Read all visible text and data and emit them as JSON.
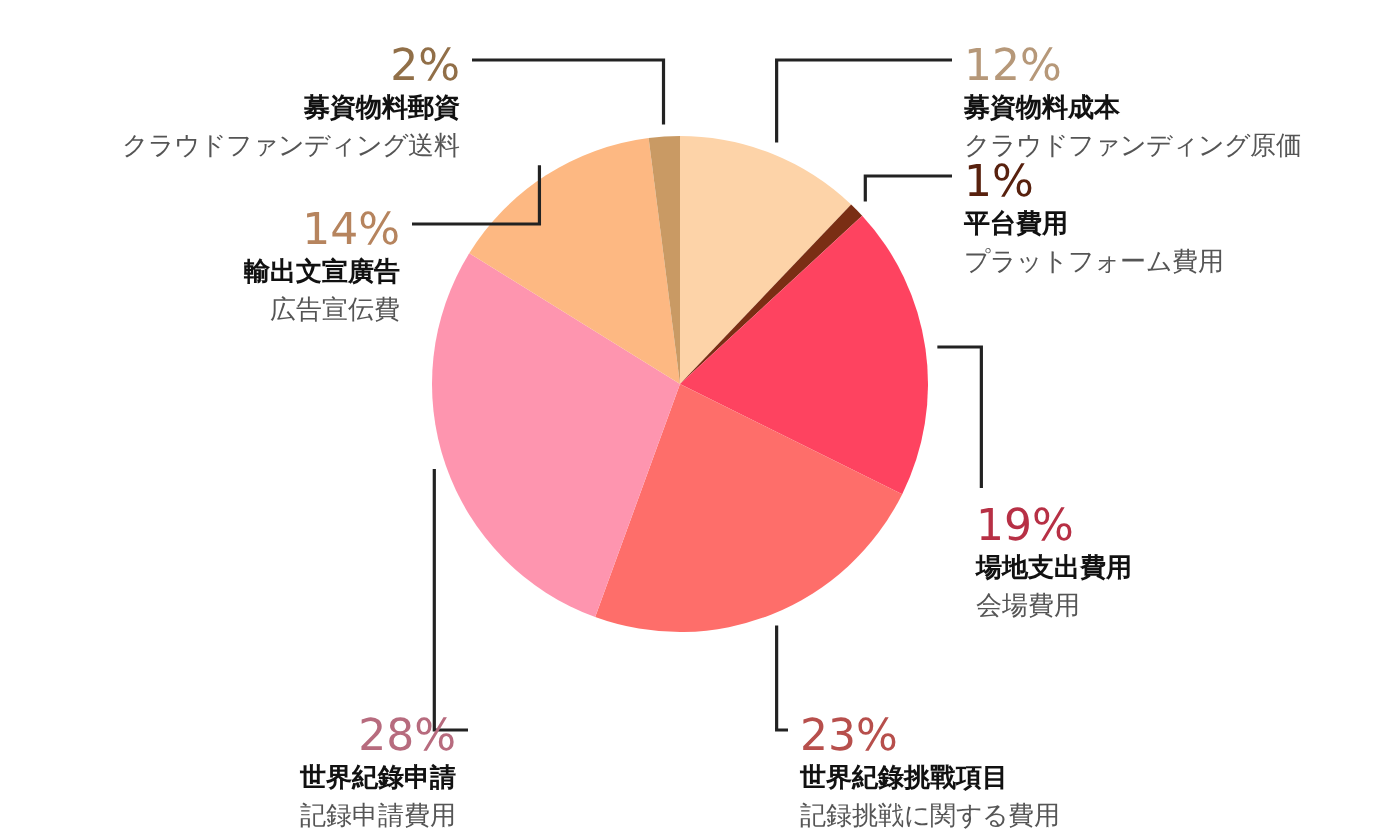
{
  "chart_data": {
    "type": "pie",
    "categories": [
      "募資物料成本",
      "平台費用",
      "場地支出費用",
      "世界紀錄挑戰項目",
      "世界紀錄申請",
      "輸出文宣廣告",
      "募資物料郵資"
    ],
    "values": [
      12,
      1,
      19,
      23,
      28,
      14,
      2
    ],
    "value_labels": [
      "12%",
      "1%",
      "19%",
      "23%",
      "28%",
      "14%",
      "2%"
    ],
    "annotations": [
      "クラウドファンディング原価",
      "プラットフォーム費用",
      "会場費用",
      "記録挑戦に関する費用",
      "記録申請費用",
      "広告宣伝費",
      "クラウドファンディング送料"
    ],
    "colors": [
      "#fdd3a8",
      "#7a2e14",
      "#fe4360",
      "#fe6e6a",
      "#fe95af",
      "#fdb882",
      "#c99a64"
    ],
    "legend": false
  }
}
